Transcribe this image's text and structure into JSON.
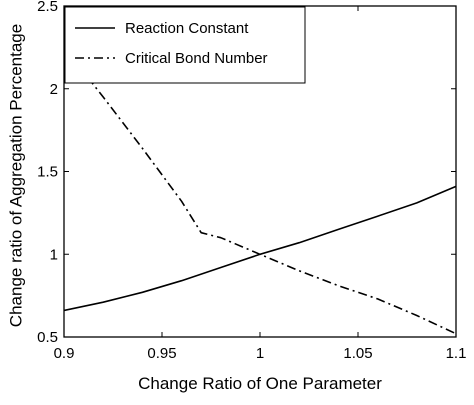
{
  "chart_data": {
    "type": "line",
    "title": "",
    "xlabel": "Change Ratio of One Parameter",
    "ylabel": "Change ratio of Aggregation Percentage",
    "xlim": [
      0.9,
      1.1
    ],
    "ylim": [
      0.5,
      2.5
    ],
    "xticks": [
      0.9,
      0.95,
      1,
      1.05,
      1.1
    ],
    "xtick_labels": [
      "0.9",
      "0.95",
      "1",
      "1.05",
      "1.1"
    ],
    "yticks": [
      0.5,
      1,
      1.5,
      2,
      2.5
    ],
    "ytick_labels": [
      "0.5",
      "1",
      "1.5",
      "2",
      "2.5"
    ],
    "grid": false,
    "legend_position": "top-left",
    "series": [
      {
        "name": "Reaction Constant",
        "style": "solid",
        "color": "#000000",
        "x": [
          0.9,
          0.92,
          0.94,
          0.96,
          0.98,
          1.0,
          1.02,
          1.04,
          1.06,
          1.08,
          1.1
        ],
        "y": [
          0.66,
          0.71,
          0.77,
          0.84,
          0.92,
          1.0,
          1.07,
          1.15,
          1.23,
          1.31,
          1.41
        ]
      },
      {
        "name": "Critical Bond Number",
        "style": "dashdot",
        "color": "#000000",
        "x": [
          0.9,
          0.92,
          0.94,
          0.96,
          0.97,
          0.98,
          1.0,
          1.02,
          1.04,
          1.06,
          1.08,
          1.1
        ],
        "y": [
          2.25,
          1.95,
          1.64,
          1.32,
          1.13,
          1.1,
          1.0,
          0.9,
          0.81,
          0.73,
          0.63,
          0.52
        ]
      }
    ]
  }
}
